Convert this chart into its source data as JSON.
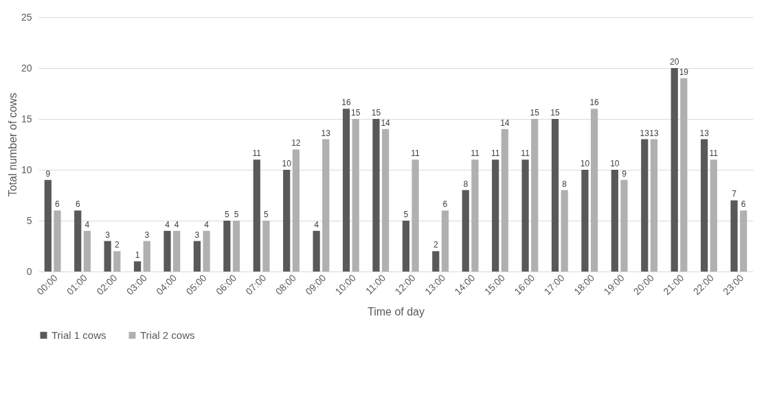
{
  "chart_data": {
    "type": "bar",
    "xlabel": "Time of day",
    "ylabel": "Total number of cows",
    "categories": [
      "00:00",
      "01:00",
      "02:00",
      "03:00",
      "04:00",
      "05:00",
      "06:00",
      "07:00",
      "08:00",
      "09:00",
      "10:00",
      "11:00",
      "12:00",
      "13:00",
      "14:00",
      "15:00",
      "16:00",
      "17:00",
      "18:00",
      "19:00",
      "20:00",
      "21:00",
      "22:00",
      "23:00"
    ],
    "series": [
      {
        "name": "Trial 1 cows",
        "color": "#595959",
        "values": [
          9,
          6,
          3,
          1,
          4,
          3,
          5,
          11,
          10,
          4,
          16,
          15,
          5,
          2,
          8,
          11,
          11,
          15,
          10,
          10,
          13,
          20,
          13,
          7
        ]
      },
      {
        "name": "Trial 2 cows",
        "color": "#b0b0b0",
        "values": [
          6,
          4,
          2,
          3,
          4,
          4,
          5,
          5,
          12,
          13,
          15,
          14,
          11,
          6,
          11,
          14,
          15,
          8,
          16,
          9,
          13,
          19,
          11,
          6
        ]
      }
    ],
    "ylim": [
      0,
      25
    ],
    "yticks": [
      0,
      5,
      10,
      15,
      20,
      25
    ],
    "grid": "y",
    "legend": "bottom",
    "data_labels": true
  }
}
